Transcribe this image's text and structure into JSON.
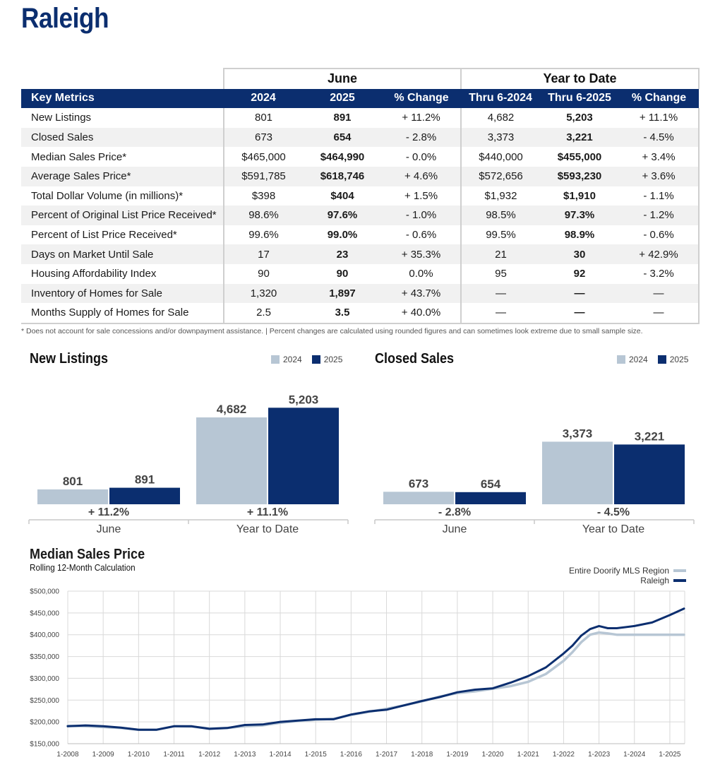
{
  "page": {
    "title": "Raleigh"
  },
  "table": {
    "group_headers": {
      "june": "June",
      "ytd": "Year to Date"
    },
    "columns": [
      "Key Metrics",
      "2024",
      "2025",
      "% Change",
      "Thru 6-2024",
      "Thru 6-2025",
      "% Change"
    ],
    "rows": [
      [
        "New Listings",
        "801",
        "891",
        "+ 11.2%",
        "4,682",
        "5,203",
        "+ 11.1%"
      ],
      [
        "Closed Sales",
        "673",
        "654",
        "- 2.8%",
        "3,373",
        "3,221",
        "- 4.5%"
      ],
      [
        "Median Sales Price*",
        "$465,000",
        "$464,990",
        "- 0.0%",
        "$440,000",
        "$455,000",
        "+ 3.4%"
      ],
      [
        "Average Sales Price*",
        "$591,785",
        "$618,746",
        "+ 4.6%",
        "$572,656",
        "$593,230",
        "+ 3.6%"
      ],
      [
        "Total Dollar Volume (in millions)*",
        "$398",
        "$404",
        "+ 1.5%",
        "$1,932",
        "$1,910",
        "- 1.1%"
      ],
      [
        "Percent of Original List Price Received*",
        "98.6%",
        "97.6%",
        "- 1.0%",
        "98.5%",
        "97.3%",
        "- 1.2%"
      ],
      [
        "Percent of List Price Received*",
        "99.6%",
        "99.0%",
        "- 0.6%",
        "99.5%",
        "98.9%",
        "- 0.6%"
      ],
      [
        "Days on Market Until Sale",
        "17",
        "23",
        "+ 35.3%",
        "21",
        "30",
        "+ 42.9%"
      ],
      [
        "Housing Affordability Index",
        "90",
        "90",
        "0.0%",
        "95",
        "92",
        "- 3.2%"
      ],
      [
        "Inventory of Homes for Sale",
        "1,320",
        "1,897",
        "+ 43.7%",
        "—",
        "—",
        "—"
      ],
      [
        "Months Supply of Homes for Sale",
        "2.5",
        "3.5",
        "+ 40.0%",
        "—",
        "—",
        "—"
      ]
    ]
  },
  "footnote": "* Does not account for sale concessions and/or downpayment assistance. | Percent changes are calculated using rounded figures and can sometimes look extreme due to small sample size.",
  "colors": {
    "navy": "#0b2e6f",
    "light": "#b7c6d4",
    "axis": "#c9c9c9",
    "grid": "#d9d9d9"
  },
  "chart_data": [
    {
      "type": "bar",
      "title": "New Listings",
      "legend": [
        "2024",
        "2025"
      ],
      "categories": [
        "June",
        "Year to Date"
      ],
      "series": [
        {
          "name": "2024",
          "values": [
            801,
            4682
          ],
          "labels": [
            "801",
            "4,682"
          ]
        },
        {
          "name": "2025",
          "values": [
            891,
            5203
          ],
          "labels": [
            "891",
            "5,203"
          ]
        }
      ],
      "changes": [
        "+ 11.2%",
        "+ 11.1%"
      ]
    },
    {
      "type": "bar",
      "title": "Closed Sales",
      "legend": [
        "2024",
        "2025"
      ],
      "categories": [
        "June",
        "Year to Date"
      ],
      "series": [
        {
          "name": "2024",
          "values": [
            673,
            3373
          ],
          "labels": [
            "673",
            "3,373"
          ]
        },
        {
          "name": "2025",
          "values": [
            654,
            3221
          ],
          "labels": [
            "654",
            "3,221"
          ]
        }
      ],
      "changes": [
        "- 2.8%",
        "- 4.5%"
      ]
    },
    {
      "type": "line",
      "title": "Median Sales Price",
      "subtitle": "Rolling 12-Month Calculation",
      "ylim": [
        150000,
        500000
      ],
      "yticks": [
        "$150,000",
        "$200,000",
        "$250,000",
        "$300,000",
        "$350,000",
        "$400,000",
        "$450,000",
        "$500,000"
      ],
      "xticks": [
        "1-2008",
        "1-2009",
        "1-2010",
        "1-2011",
        "1-2012",
        "1-2013",
        "1-2014",
        "1-2015",
        "1-2016",
        "1-2017",
        "1-2018",
        "1-2019",
        "1-2020",
        "1-2021",
        "1-2022",
        "1-2023",
        "1-2024",
        "1-2025"
      ],
      "x": [
        2008.0,
        2008.5,
        2009.0,
        2009.5,
        2010.0,
        2010.5,
        2011.0,
        2011.5,
        2012.0,
        2012.5,
        2013.0,
        2013.5,
        2014.0,
        2014.5,
        2015.0,
        2015.5,
        2016.0,
        2016.5,
        2017.0,
        2017.5,
        2018.0,
        2018.5,
        2019.0,
        2019.5,
        2020.0,
        2020.5,
        2021.0,
        2021.5,
        2022.0,
        2022.25,
        2022.5,
        2022.75,
        2023.0,
        2023.25,
        2023.5,
        2024.0,
        2024.5,
        2025.0,
        2025.4
      ],
      "series": [
        {
          "name": "Entire Doorify MLS Region",
          "values": [
            191000,
            190000,
            188000,
            186000,
            182000,
            182000,
            190000,
            189000,
            185000,
            186000,
            190000,
            192000,
            198000,
            202000,
            205000,
            207000,
            216000,
            223000,
            230000,
            238000,
            247000,
            258000,
            266000,
            270000,
            276000,
            282000,
            292000,
            310000,
            340000,
            360000,
            383000,
            400000,
            405000,
            403000,
            400000,
            400000,
            400000,
            400000,
            400000
          ]
        },
        {
          "name": "Raleigh",
          "values": [
            190000,
            192000,
            190000,
            187000,
            182000,
            182000,
            190000,
            190000,
            184000,
            186000,
            193000,
            194000,
            200000,
            203000,
            206000,
            206000,
            217000,
            224000,
            228000,
            238000,
            248000,
            257000,
            268000,
            274000,
            277000,
            290000,
            305000,
            325000,
            357000,
            375000,
            398000,
            413000,
            420000,
            415000,
            415000,
            420000,
            428000,
            445000,
            460000
          ]
        }
      ]
    }
  ]
}
